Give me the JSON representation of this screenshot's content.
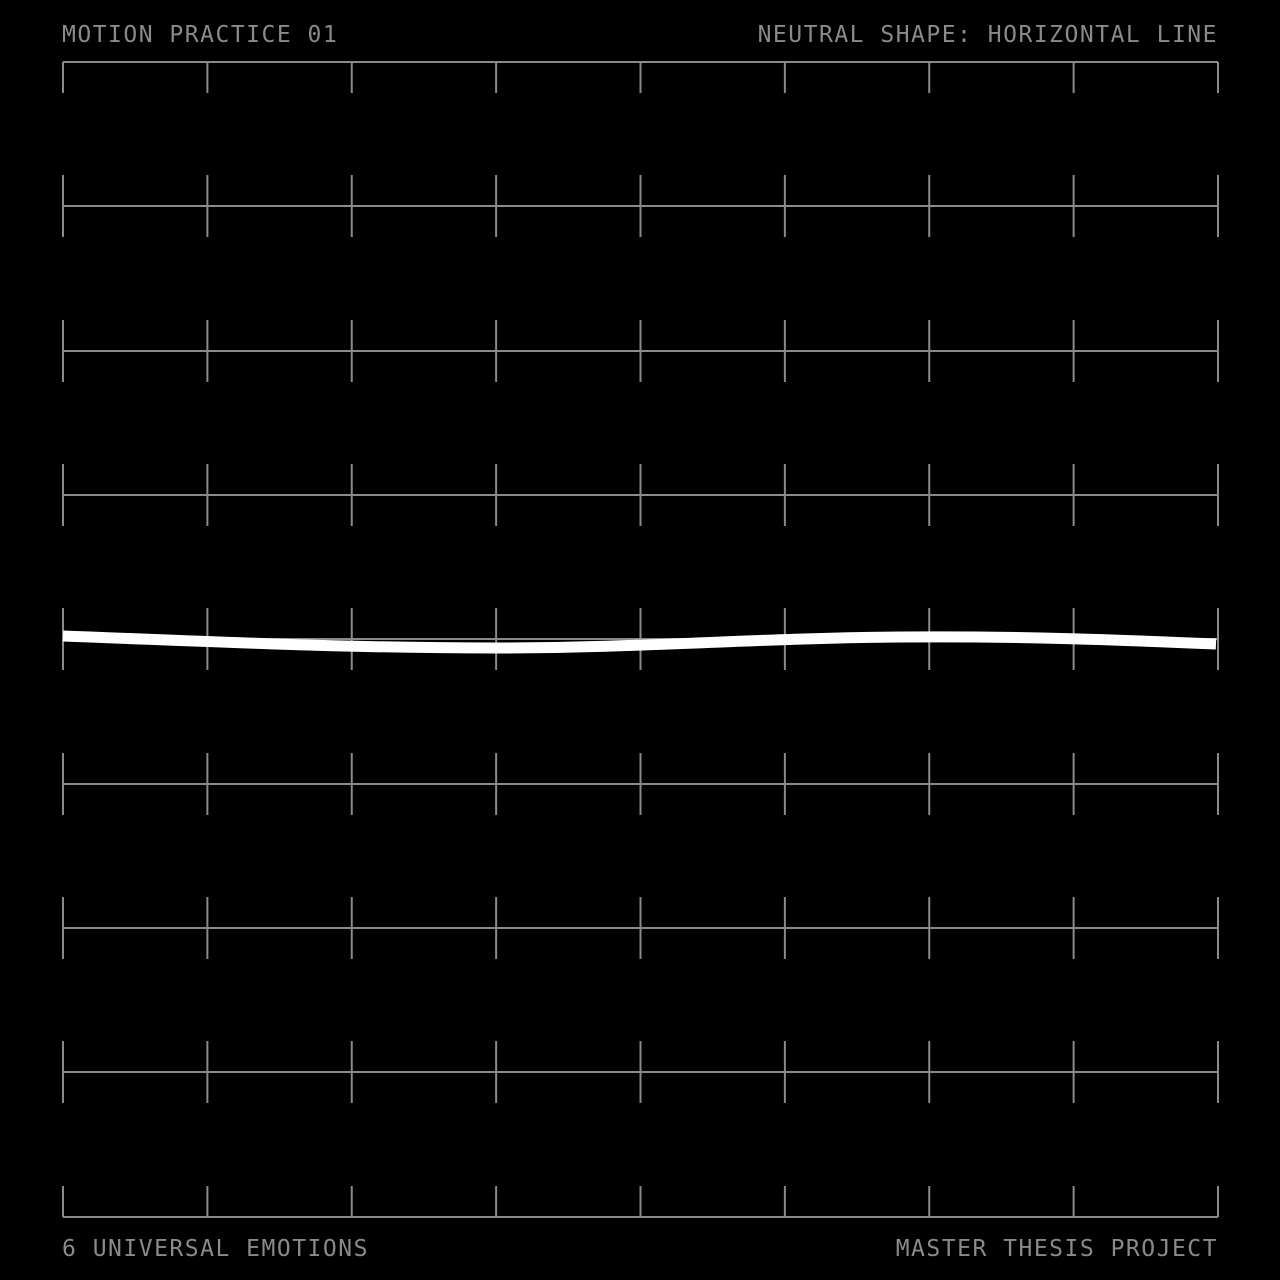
{
  "header": {
    "title": "MOTION PRACTICE 01",
    "subtitle": "NEUTRAL SHAPE: HORIZONTAL LINE"
  },
  "footer": {
    "left": "6 UNIVERSAL EMOTIONS",
    "right": "MASTER THESIS PROJECT"
  },
  "colors": {
    "background": "#000000",
    "grid": "#8a8a8a",
    "text": "#8a8a8a",
    "line": "#ffffff"
  }
}
